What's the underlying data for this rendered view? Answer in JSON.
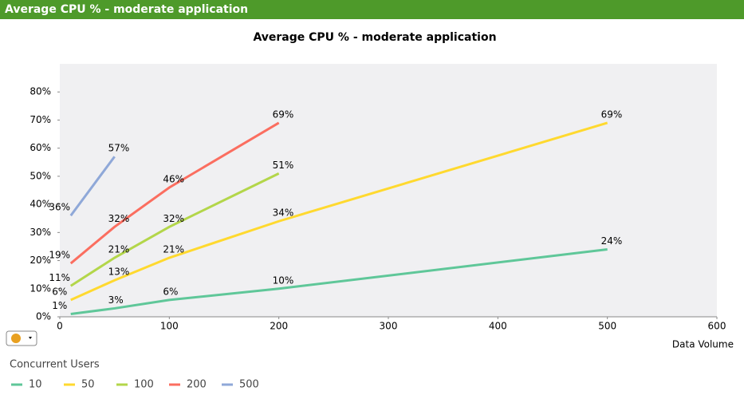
{
  "header": {
    "title": "Average CPU % - moderate application"
  },
  "chart_data": {
    "type": "line",
    "title": "Average CPU % - moderate application",
    "x_label": "Data Volume",
    "legend_title": "Concurrent Users",
    "x": [
      10,
      50,
      100,
      200,
      500
    ],
    "series": [
      {
        "name": "10",
        "color": "#5fc799",
        "values": [
          1,
          3,
          6,
          10,
          24
        ],
        "value_labels": [
          "1%",
          "3%",
          "6%",
          "10%",
          "24%"
        ]
      },
      {
        "name": "50",
        "color": "#ffd92f",
        "values": [
          6,
          13,
          21,
          34,
          69
        ],
        "value_labels": [
          "6%",
          "13%",
          "21%",
          "34%",
          "69%"
        ]
      },
      {
        "name": "100",
        "color": "#b3d64a",
        "values": [
          11,
          21,
          32,
          51,
          null
        ],
        "value_labels": [
          "11%",
          "21%",
          "32%",
          "51%",
          null
        ]
      },
      {
        "name": "200",
        "color": "#fb6e60",
        "values": [
          19,
          32,
          46,
          69,
          null
        ],
        "value_labels": [
          "19%",
          "32%",
          "46%",
          "69%",
          null
        ]
      },
      {
        "name": "500",
        "color": "#8fa8d8",
        "values": [
          36,
          57,
          null,
          null,
          null
        ],
        "value_labels": [
          "36%",
          "57%",
          null,
          null,
          null
        ]
      }
    ],
    "xlim": [
      0,
      600
    ],
    "xticks": [
      0,
      100,
      200,
      300,
      400,
      500,
      600
    ],
    "ylim": [
      0,
      90
    ],
    "yticks": [
      {
        "value": 0,
        "label": "0%"
      },
      {
        "value": 10,
        "label": "10%"
      },
      {
        "value": 20,
        "label": "20%"
      },
      {
        "value": 30,
        "label": "30%"
      },
      {
        "value": 40,
        "label": "40%"
      },
      {
        "value": 50,
        "label": "50%"
      },
      {
        "value": 60,
        "label": "60%"
      },
      {
        "value": 70,
        "label": "70%"
      },
      {
        "value": 80,
        "label": "80%"
      }
    ]
  }
}
